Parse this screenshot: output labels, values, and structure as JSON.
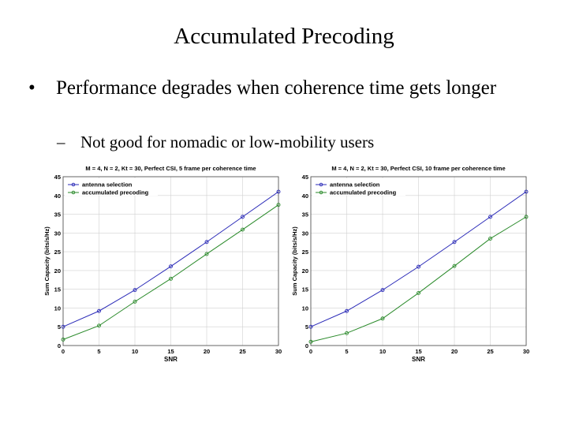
{
  "slide": {
    "title": "Accumulated Precoding",
    "bullet": "Performance degrades when coherence time gets longer",
    "bullet_marker": "•",
    "sub_bullet": "Not good for nomadic or low-mobility users",
    "sub_marker": "–"
  },
  "colors": {
    "series1": "#2b2bb8",
    "series2": "#2a8a2a",
    "grid": "#d0d0d0"
  },
  "chart_data": [
    {
      "type": "line",
      "title": "M = 4, N = 2, Kt = 30, Perfect CSI, 5 frame per coherence time",
      "xlabel": "SNR",
      "ylabel": "Sum Capacity (bits/s/Hz)",
      "x": [
        0,
        5,
        10,
        15,
        20,
        25,
        30
      ],
      "xlim": [
        0,
        30
      ],
      "ylim": [
        0,
        45
      ],
      "xticks": [
        0,
        5,
        10,
        15,
        20,
        25,
        30
      ],
      "yticks": [
        0,
        5,
        10,
        15,
        20,
        25,
        30,
        35,
        40,
        45
      ],
      "grid": true,
      "legend_position": "top-left",
      "series": [
        {
          "name": "antenna selection",
          "values": [
            5.0,
            9.2,
            14.8,
            21.1,
            27.6,
            34.3,
            41.0
          ]
        },
        {
          "name": "accumulated precoding",
          "values": [
            1.6,
            5.3,
            11.7,
            17.8,
            24.4,
            30.9,
            37.5
          ]
        }
      ]
    },
    {
      "type": "line",
      "title": "M = 4, N = 2, Kt = 30, Perfect CSI, 10 frame per coherence time",
      "xlabel": "SNR",
      "ylabel": "Sum Capacity (bits/s/Hz)",
      "x": [
        0,
        5,
        10,
        15,
        20,
        25,
        30
      ],
      "xlim": [
        0,
        30
      ],
      "ylim": [
        0,
        45
      ],
      "xticks": [
        0,
        5,
        10,
        15,
        20,
        25,
        30
      ],
      "yticks": [
        0,
        5,
        10,
        15,
        20,
        25,
        30,
        35,
        40,
        45
      ],
      "grid": true,
      "legend_position": "top-left",
      "series": [
        {
          "name": "antenna selection",
          "values": [
            5.0,
            9.2,
            14.8,
            21.0,
            27.6,
            34.3,
            41.0
          ]
        },
        {
          "name": "accumulated precoding",
          "values": [
            1.0,
            3.3,
            7.2,
            14.0,
            21.2,
            28.5,
            34.3
          ]
        }
      ]
    }
  ]
}
